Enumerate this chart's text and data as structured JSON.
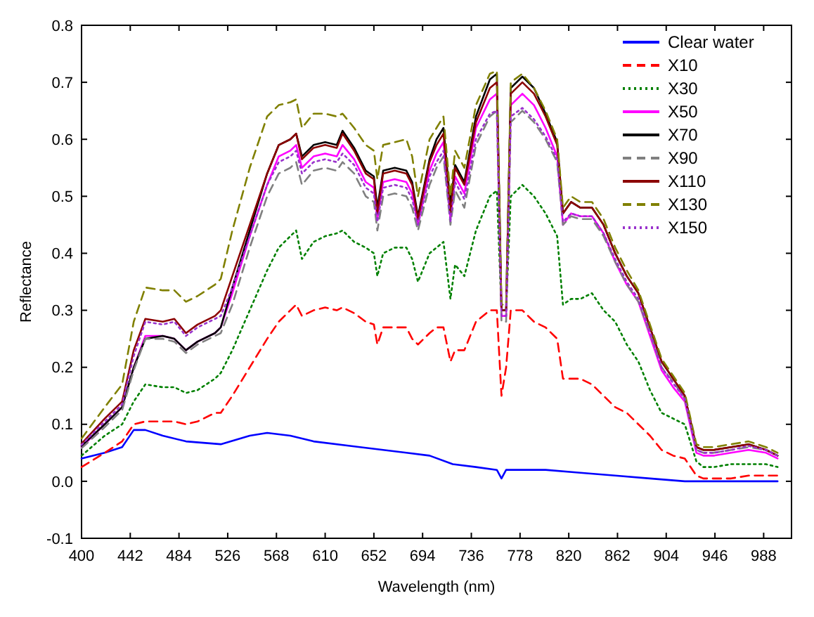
{
  "chart_data": {
    "type": "line",
    "xlabel": "Wavelength (nm)",
    "ylabel": "Reflectance",
    "x": [
      400,
      420,
      435,
      445,
      455,
      470,
      480,
      490,
      500,
      515,
      520,
      530,
      545,
      560,
      570,
      580,
      585,
      590,
      600,
      610,
      620,
      625,
      635,
      645,
      652,
      655,
      660,
      670,
      680,
      685,
      690,
      700,
      706,
      712,
      718,
      722,
      730,
      740,
      752,
      758,
      762,
      766,
      770,
      780,
      790,
      800,
      810,
      815,
      822,
      830,
      840,
      850,
      860,
      870,
      880,
      890,
      900,
      910,
      920,
      930,
      936,
      945,
      960,
      975,
      990,
      1000
    ],
    "xlim": [
      400,
      1012
    ],
    "xticks": [
      400,
      442,
      484,
      526,
      568,
      610,
      652,
      694,
      736,
      778,
      820,
      862,
      904,
      946,
      988
    ],
    "ylim": [
      -0.1,
      0.8
    ],
    "yticks": [
      -0.1,
      {
        "value": 0,
        "label": "0.0"
      },
      0.1,
      0.2,
      0.3,
      0.4,
      0.5,
      0.6,
      0.7,
      0.8
    ],
    "legend": "top right",
    "grid": false,
    "series": [
      {
        "name": "Clear water",
        "color": "#0000ff",
        "line_style": "solid",
        "x": [
          400,
          420,
          435,
          445,
          455,
          470,
          490,
          520,
          545,
          560,
          580,
          600,
          640,
          680,
          700,
          720,
          740,
          758,
          762,
          766,
          800,
          830,
          860,
          890,
          920,
          1000
        ],
        "values": [
          0.04,
          0.05,
          0.06,
          0.09,
          0.09,
          0.08,
          0.07,
          0.065,
          0.08,
          0.085,
          0.08,
          0.07,
          0.06,
          0.05,
          0.045,
          0.03,
          0.025,
          0.02,
          0.005,
          0.02,
          0.02,
          0.015,
          0.01,
          0.005,
          0,
          0
        ]
      },
      {
        "name": "X10",
        "color": "#ff0000",
        "line_style": "dashed",
        "values": [
          0.025,
          0.05,
          0.07,
          0.1,
          0.105,
          0.105,
          0.105,
          0.1,
          0.105,
          0.12,
          0.12,
          0.15,
          0.2,
          0.25,
          0.28,
          0.3,
          0.31,
          0.29,
          0.3,
          0.305,
          0.3,
          0.305,
          0.295,
          0.28,
          0.275,
          0.24,
          0.27,
          0.27,
          0.27,
          0.25,
          0.24,
          0.26,
          0.27,
          0.27,
          0.21,
          0.23,
          0.23,
          0.28,
          0.3,
          0.3,
          0.15,
          0.2,
          0.3,
          0.3,
          0.28,
          0.27,
          0.25,
          0.18,
          0.18,
          0.18,
          0.17,
          0.15,
          0.13,
          0.12,
          0.1,
          0.08,
          0.055,
          0.045,
          0.04,
          0.01,
          0.005,
          0.005,
          0.005,
          0.01,
          0.01,
          0.01
        ]
      },
      {
        "name": "X30",
        "color": "#008000",
        "line_style": "dotted",
        "values": [
          0.045,
          0.08,
          0.1,
          0.14,
          0.17,
          0.165,
          0.165,
          0.155,
          0.16,
          0.18,
          0.19,
          0.23,
          0.3,
          0.37,
          0.41,
          0.43,
          0.44,
          0.39,
          0.42,
          0.43,
          0.435,
          0.44,
          0.42,
          0.41,
          0.4,
          0.36,
          0.4,
          0.41,
          0.41,
          0.39,
          0.35,
          0.4,
          0.41,
          0.42,
          0.32,
          0.38,
          0.36,
          0.44,
          0.5,
          0.51,
          0.3,
          0.3,
          0.5,
          0.52,
          0.5,
          0.47,
          0.43,
          0.31,
          0.32,
          0.32,
          0.33,
          0.3,
          0.28,
          0.24,
          0.21,
          0.16,
          0.12,
          0.11,
          0.1,
          0.035,
          0.025,
          0.025,
          0.03,
          0.03,
          0.03,
          0.025
        ]
      },
      {
        "name": "X50",
        "color": "#ff00ff",
        "line_style": "solid",
        "values": [
          0.06,
          0.1,
          0.13,
          0.2,
          0.255,
          0.255,
          0.25,
          0.23,
          0.245,
          0.26,
          0.27,
          0.33,
          0.43,
          0.52,
          0.57,
          0.58,
          0.59,
          0.55,
          0.57,
          0.575,
          0.57,
          0.59,
          0.565,
          0.525,
          0.515,
          0.46,
          0.525,
          0.53,
          0.525,
          0.505,
          0.45,
          0.545,
          0.575,
          0.595,
          0.46,
          0.535,
          0.505,
          0.62,
          0.67,
          0.68,
          0.29,
          0.29,
          0.66,
          0.68,
          0.66,
          0.62,
          0.57,
          0.45,
          0.47,
          0.465,
          0.465,
          0.435,
          0.385,
          0.345,
          0.315,
          0.255,
          0.195,
          0.165,
          0.14,
          0.05,
          0.045,
          0.045,
          0.05,
          0.055,
          0.05,
          0.04
        ]
      },
      {
        "name": "X70",
        "color": "#000000",
        "line_style": "solid",
        "values": [
          0.062,
          0.1,
          0.13,
          0.2,
          0.25,
          0.255,
          0.25,
          0.23,
          0.245,
          0.26,
          0.27,
          0.34,
          0.44,
          0.54,
          0.59,
          0.6,
          0.61,
          0.57,
          0.59,
          0.595,
          0.59,
          0.615,
          0.585,
          0.545,
          0.535,
          0.48,
          0.545,
          0.55,
          0.545,
          0.525,
          0.465,
          0.565,
          0.6,
          0.62,
          0.485,
          0.555,
          0.525,
          0.64,
          0.705,
          0.715,
          0.3,
          0.3,
          0.69,
          0.71,
          0.69,
          0.645,
          0.595,
          0.47,
          0.49,
          0.48,
          0.48,
          0.45,
          0.4,
          0.36,
          0.33,
          0.27,
          0.21,
          0.18,
          0.15,
          0.06,
          0.055,
          0.055,
          0.06,
          0.065,
          0.055,
          0.045
        ]
      },
      {
        "name": "X90",
        "color": "#808080",
        "line_style": "dashed",
        "values": [
          0.058,
          0.095,
          0.125,
          0.195,
          0.25,
          0.25,
          0.245,
          0.225,
          0.24,
          0.255,
          0.26,
          0.31,
          0.41,
          0.5,
          0.54,
          0.55,
          0.56,
          0.52,
          0.545,
          0.55,
          0.545,
          0.56,
          0.54,
          0.5,
          0.49,
          0.44,
          0.5,
          0.505,
          0.5,
          0.48,
          0.44,
          0.52,
          0.55,
          0.57,
          0.45,
          0.51,
          0.48,
          0.59,
          0.64,
          0.65,
          0.28,
          0.28,
          0.63,
          0.65,
          0.63,
          0.6,
          0.56,
          0.45,
          0.465,
          0.46,
          0.46,
          0.43,
          0.385,
          0.345,
          0.315,
          0.26,
          0.2,
          0.175,
          0.145,
          0.055,
          0.05,
          0.05,
          0.055,
          0.06,
          0.055,
          0.045
        ]
      },
      {
        "name": "X110",
        "color": "#8b0000",
        "line_style": "solid",
        "values": [
          0.066,
          0.11,
          0.14,
          0.23,
          0.285,
          0.28,
          0.285,
          0.26,
          0.275,
          0.29,
          0.3,
          0.36,
          0.45,
          0.54,
          0.59,
          0.6,
          0.61,
          0.565,
          0.585,
          0.59,
          0.585,
          0.61,
          0.58,
          0.54,
          0.53,
          0.47,
          0.54,
          0.545,
          0.54,
          0.52,
          0.46,
          0.56,
          0.59,
          0.61,
          0.47,
          0.55,
          0.52,
          0.63,
          0.69,
          0.7,
          0.3,
          0.3,
          0.68,
          0.7,
          0.68,
          0.64,
          0.59,
          0.47,
          0.49,
          0.48,
          0.48,
          0.45,
          0.4,
          0.36,
          0.33,
          0.27,
          0.21,
          0.18,
          0.15,
          0.06,
          0.055,
          0.055,
          0.06,
          0.065,
          0.055,
          0.045
        ]
      },
      {
        "name": "X130",
        "color": "#808000",
        "line_style": "dashed",
        "values": [
          0.075,
          0.13,
          0.17,
          0.28,
          0.34,
          0.335,
          0.335,
          0.315,
          0.325,
          0.345,
          0.355,
          0.44,
          0.55,
          0.64,
          0.66,
          0.665,
          0.67,
          0.62,
          0.645,
          0.645,
          0.64,
          0.645,
          0.62,
          0.59,
          0.58,
          0.53,
          0.59,
          0.595,
          0.6,
          0.57,
          0.5,
          0.6,
          0.62,
          0.64,
          0.5,
          0.58,
          0.55,
          0.66,
          0.715,
          0.72,
          0.31,
          0.31,
          0.7,
          0.715,
          0.69,
          0.65,
          0.6,
          0.48,
          0.5,
          0.49,
          0.49,
          0.46,
          0.41,
          0.37,
          0.335,
          0.275,
          0.215,
          0.185,
          0.155,
          0.065,
          0.06,
          0.06,
          0.065,
          0.07,
          0.06,
          0.05
        ]
      },
      {
        "name": "X150",
        "color": "#9932cc",
        "line_style": "dotted",
        "values": [
          0.064,
          0.105,
          0.135,
          0.22,
          0.28,
          0.275,
          0.28,
          0.255,
          0.27,
          0.285,
          0.29,
          0.34,
          0.43,
          0.52,
          0.56,
          0.57,
          0.58,
          0.54,
          0.56,
          0.565,
          0.56,
          0.575,
          0.555,
          0.515,
          0.505,
          0.455,
          0.515,
          0.52,
          0.515,
          0.495,
          0.45,
          0.535,
          0.56,
          0.58,
          0.455,
          0.525,
          0.495,
          0.6,
          0.645,
          0.65,
          0.29,
          0.29,
          0.64,
          0.655,
          0.635,
          0.605,
          0.565,
          0.455,
          0.47,
          0.465,
          0.465,
          0.435,
          0.39,
          0.35,
          0.32,
          0.262,
          0.2,
          0.172,
          0.145,
          0.055,
          0.05,
          0.05,
          0.055,
          0.062,
          0.055,
          0.045
        ]
      }
    ]
  }
}
